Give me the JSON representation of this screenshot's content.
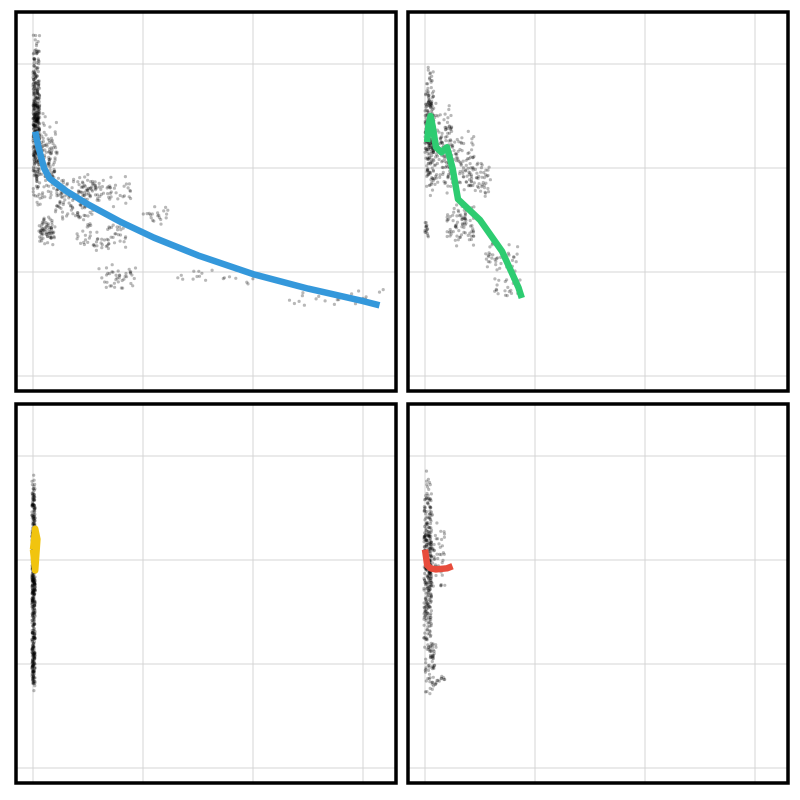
{
  "chart_data": [
    {
      "type": "scatter",
      "panel": "top-left",
      "grid": true,
      "xlim": [
        0,
        3.3
      ],
      "ylim": [
        0,
        3.4
      ],
      "xticks": [
        0,
        1,
        2,
        3
      ],
      "yticks": [
        0,
        1,
        2,
        3
      ],
      "trend_color": "#3498db",
      "trend": [
        [
          0.02,
          2.35
        ],
        [
          0.05,
          2.2
        ],
        [
          0.1,
          2.0
        ],
        [
          0.15,
          1.9
        ],
        [
          0.3,
          1.78
        ],
        [
          0.5,
          1.65
        ],
        [
          0.8,
          1.48
        ],
        [
          1.1,
          1.33
        ],
        [
          1.5,
          1.16
        ],
        [
          2.0,
          0.98
        ],
        [
          2.5,
          0.84
        ],
        [
          3.0,
          0.72
        ],
        [
          3.15,
          0.68
        ]
      ],
      "clusters": [
        {
          "n": 380,
          "x": [
            0.0,
            0.06
          ],
          "y": [
            1.7,
            3.3
          ]
        },
        {
          "n": 130,
          "x": [
            0.03,
            0.22
          ],
          "y": [
            1.6,
            2.6
          ]
        },
        {
          "n": 70,
          "x": [
            0.05,
            0.2
          ],
          "y": [
            1.25,
            1.55
          ]
        },
        {
          "n": 120,
          "x": [
            0.2,
            0.55
          ],
          "y": [
            1.45,
            1.95
          ]
        },
        {
          "n": 70,
          "x": [
            0.45,
            0.9
          ],
          "y": [
            1.6,
            1.95
          ]
        },
        {
          "n": 60,
          "x": [
            0.4,
            0.85
          ],
          "y": [
            1.2,
            1.5
          ]
        },
        {
          "n": 40,
          "x": [
            0.6,
            0.95
          ],
          "y": [
            0.8,
            1.1
          ]
        },
        {
          "n": 20,
          "x": [
            1.0,
            1.25
          ],
          "y": [
            1.45,
            1.65
          ]
        },
        {
          "n": 20,
          "x": [
            1.3,
            2.0
          ],
          "y": [
            0.85,
            1.05
          ]
        },
        {
          "n": 25,
          "x": [
            2.3,
            3.2
          ],
          "y": [
            0.65,
            0.85
          ]
        }
      ]
    },
    {
      "type": "scatter",
      "panel": "top-right",
      "grid": true,
      "xlim": [
        0,
        3.3
      ],
      "ylim": [
        0,
        3.4
      ],
      "xticks": [
        0,
        1,
        2,
        3
      ],
      "yticks": [
        0,
        1,
        2,
        3
      ],
      "trend_color": "#2ecc71",
      "trend": [
        [
          0.02,
          2.25
        ],
        [
          0.03,
          2.4
        ],
        [
          0.05,
          2.5
        ],
        [
          0.07,
          2.4
        ],
        [
          0.1,
          2.2
        ],
        [
          0.15,
          2.15
        ],
        [
          0.2,
          2.2
        ],
        [
          0.25,
          2.0
        ],
        [
          0.3,
          1.7
        ],
        [
          0.5,
          1.5
        ],
        [
          0.7,
          1.2
        ],
        [
          0.85,
          0.85
        ],
        [
          0.88,
          0.75
        ]
      ],
      "clusters": [
        {
          "n": 220,
          "x": [
            0.0,
            0.08
          ],
          "y": [
            1.7,
            3.0
          ]
        },
        {
          "n": 120,
          "x": [
            0.05,
            0.25
          ],
          "y": [
            1.7,
            2.7
          ]
        },
        {
          "n": 90,
          "x": [
            0.2,
            0.45
          ],
          "y": [
            1.7,
            2.4
          ]
        },
        {
          "n": 80,
          "x": [
            0.2,
            0.45
          ],
          "y": [
            1.2,
            1.7
          ]
        },
        {
          "n": 50,
          "x": [
            0.4,
            0.6
          ],
          "y": [
            1.7,
            2.1
          ]
        },
        {
          "n": 40,
          "x": [
            0.55,
            0.85
          ],
          "y": [
            0.95,
            1.3
          ]
        },
        {
          "n": 25,
          "x": [
            0.6,
            0.9
          ],
          "y": [
            0.75,
            0.95
          ]
        },
        {
          "n": 15,
          "x": [
            0.0,
            0.03
          ],
          "y": [
            1.3,
            1.5
          ]
        }
      ]
    },
    {
      "type": "scatter",
      "panel": "bottom-left",
      "grid": true,
      "xlim": [
        0,
        3.3
      ],
      "ylim": [
        0,
        3.4
      ],
      "xticks": [
        0,
        1,
        2,
        3
      ],
      "yticks": [
        0,
        1,
        2,
        3
      ],
      "trend_color": "#f1c40f",
      "trend": [
        [
          0.0,
          2.1
        ],
        [
          0.02,
          2.3
        ],
        [
          0.04,
          2.2
        ],
        [
          0.02,
          1.9
        ],
        [
          0.0,
          2.1
        ]
      ],
      "clusters": [
        {
          "n": 420,
          "x": [
            -0.01,
            0.02
          ],
          "y": [
            1.0,
            2.9
          ]
        },
        {
          "n": 120,
          "x": [
            -0.01,
            0.02
          ],
          "y": [
            0.7,
            1.4
          ]
        }
      ]
    },
    {
      "type": "scatter",
      "panel": "bottom-right",
      "grid": true,
      "xlim": [
        0,
        3.3
      ],
      "ylim": [
        0,
        3.4
      ],
      "xticks": [
        0,
        1,
        2,
        3
      ],
      "yticks": [
        0,
        1,
        2,
        3
      ],
      "trend_color": "#e74c3c",
      "trend": [
        [
          0.0,
          2.1
        ],
        [
          0.02,
          1.95
        ],
        [
          0.05,
          1.92
        ],
        [
          0.1,
          1.91
        ],
        [
          0.2,
          1.92
        ],
        [
          0.25,
          1.94
        ]
      ],
      "clusters": [
        {
          "n": 320,
          "x": [
            -0.01,
            0.06
          ],
          "y": [
            1.0,
            2.9
          ]
        },
        {
          "n": 60,
          "x": [
            0.03,
            0.18
          ],
          "y": [
            1.6,
            2.5
          ]
        },
        {
          "n": 60,
          "x": [
            0.0,
            0.1
          ],
          "y": [
            0.7,
            1.3
          ]
        },
        {
          "n": 10,
          "x": [
            0.1,
            0.18
          ],
          "y": [
            0.8,
            0.9
          ]
        }
      ]
    }
  ]
}
